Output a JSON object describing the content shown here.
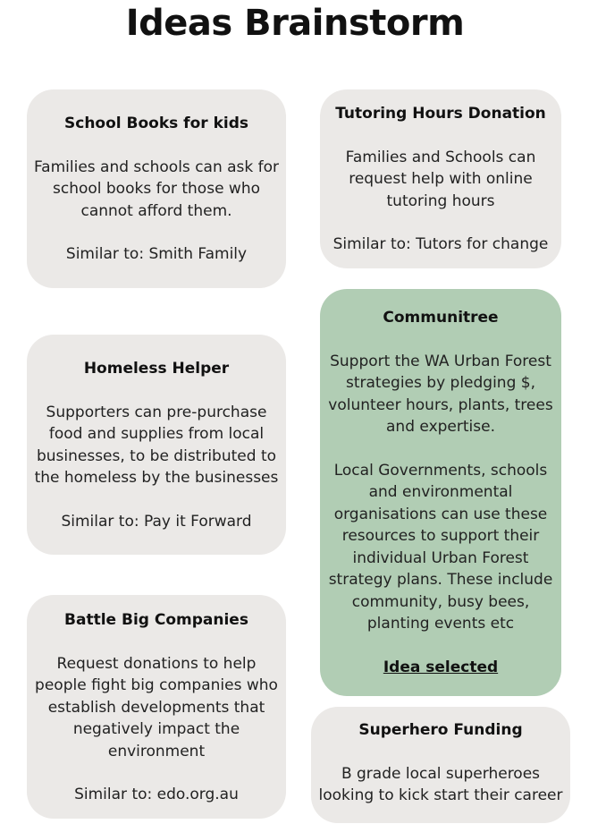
{
  "page": {
    "title": "Ideas Brainstorm"
  },
  "colors": {
    "card_default": "#ebe9e7",
    "card_selected": "#b1cdb4"
  },
  "cards": {
    "school_books": {
      "title": "School Books for kids",
      "description": "Families and schools can ask for school books for those who cannot afford them.",
      "similar": "Similar to: Smith Family"
    },
    "tutoring": {
      "title": "Tutoring Hours Donation",
      "description": "Families and Schools can request help with online tutoring hours",
      "similar": "Similar to: Tutors for change"
    },
    "communitree": {
      "title": "Communitree",
      "description": "Support the WA Urban Forest strategies by pledging $, volunteer hours, plants, trees and expertise.",
      "details": "Local Governments, schools and environmental organisations can use these resources to support their individual Urban Forest strategy plans. These include community, busy bees, planting events etc",
      "status": "Idea selected"
    },
    "homeless": {
      "title": "Homeless Helper",
      "description": "Supporters can pre-purchase food and supplies from local businesses, to be distributed to the homeless by the businesses",
      "similar": "Similar to: Pay it Forward"
    },
    "battle": {
      "title": "Battle Big Companies",
      "description": "Request donations to help people fight big companies who establish developments that negatively impact the environment",
      "similar": "Similar to: edo.org.au"
    },
    "superhero": {
      "title": "Superhero Funding",
      "description": "B grade local superheroes looking to kick start their career"
    }
  }
}
